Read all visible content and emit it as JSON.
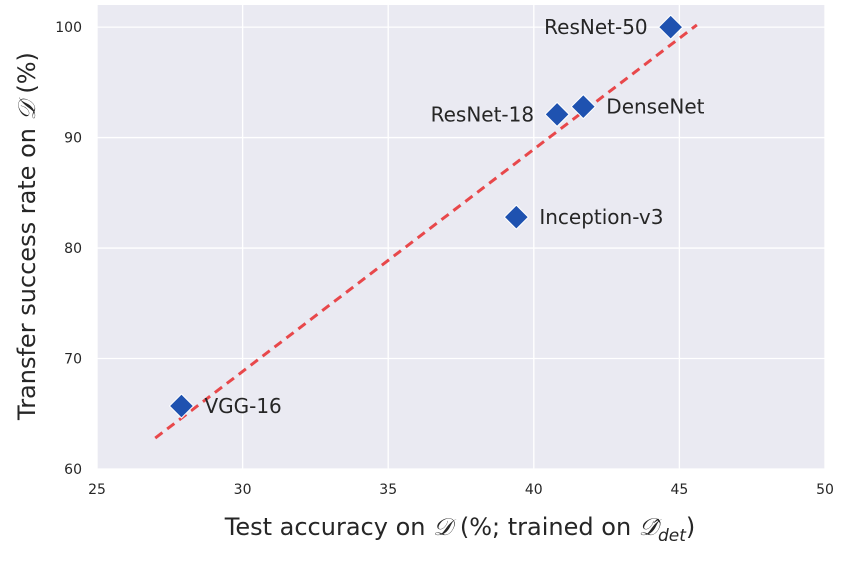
{
  "chart_data": {
    "type": "scatter",
    "xlabel": "Test accuracy on 𝓓 (%; trained on 𝓓̂_det)",
    "ylabel": "Transfer success rate on 𝓓 (%)",
    "xlim": [
      25,
      50
    ],
    "ylim": [
      60,
      102
    ],
    "x_ticks": [
      "25",
      "30",
      "35",
      "40",
      "45",
      "50"
    ],
    "y_ticks": [
      "60",
      "70",
      "80",
      "90",
      "100"
    ],
    "grid": true,
    "marker_color": "#1f52b0",
    "trend_color": "#e8484b",
    "background_color": "#eaeaf2",
    "points": [
      {
        "label": "VGG-16",
        "x": 27.9,
        "y": 65.7,
        "label_side": "right"
      },
      {
        "label": "Inception-v3",
        "x": 39.4,
        "y": 82.8,
        "label_side": "right"
      },
      {
        "label": "ResNet-18",
        "x": 40.8,
        "y": 92.1,
        "label_side": "left"
      },
      {
        "label": "DenseNet",
        "x": 41.7,
        "y": 92.8,
        "label_side": "right"
      },
      {
        "label": "ResNet-50",
        "x": 44.7,
        "y": 100.0,
        "label_side": "left"
      }
    ],
    "trend_line": {
      "x": [
        27.0,
        45.6
      ],
      "y": [
        62.8,
        100.2
      ]
    }
  }
}
